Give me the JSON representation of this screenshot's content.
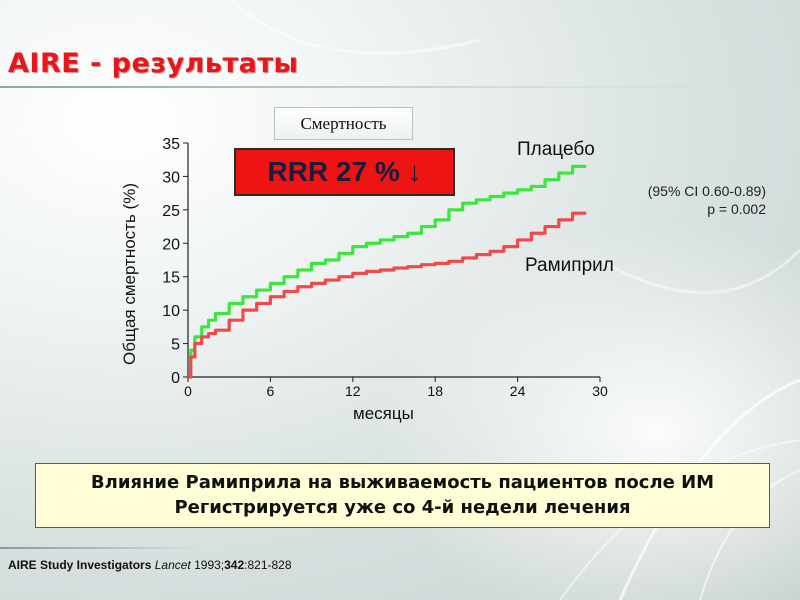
{
  "title": "AIRE - результаты",
  "box_label": "Смертность",
  "rrr_text": "RRR 27 % ↓",
  "ci_line1": "(95% CI 0.60-0.89)",
  "p_line": "p = 0.002",
  "note_line1": "Влияние Рамиприла на выживаемость пациентов после ИМ",
  "note_line2": "Регистрируется уже со 4-й недели лечения",
  "citation": {
    "authors": "AIRE Study Investigators",
    "journal": "Lancet",
    "year": "1993;",
    "volume": "342",
    "pages": ":821-828"
  },
  "colors": {
    "title": "#e8161b",
    "placebo": "#3ce63c",
    "ramipril": "#f04a4a",
    "rrr_box": "#ee1414",
    "note_bg": "#fefdd5"
  },
  "chart_data": {
    "type": "line",
    "title": "",
    "xlabel": "месяцы",
    "ylabel": "Общая смертность (%)",
    "xlim": [
      0,
      30
    ],
    "ylim": [
      0,
      35
    ],
    "xticks": [
      0,
      6,
      12,
      18,
      24,
      30
    ],
    "yticks": [
      0,
      5,
      10,
      15,
      20,
      25,
      30,
      35
    ],
    "grid": false,
    "series": [
      {
        "name": "Плацебо",
        "x": [
          0,
          0.2,
          0.5,
          1,
          1.5,
          2,
          3,
          4,
          5,
          6,
          7,
          8,
          9,
          10,
          11,
          12,
          13,
          14,
          15,
          16,
          17,
          18,
          19,
          20,
          21,
          22,
          23,
          24,
          25,
          26,
          27,
          28,
          29
        ],
        "y": [
          0,
          4,
          6,
          7.5,
          8.5,
          9.5,
          11,
          12,
          13,
          14,
          15,
          16,
          17,
          17.5,
          18.5,
          19.5,
          20,
          20.5,
          21,
          21.5,
          22.5,
          23.5,
          25,
          26,
          26.5,
          27,
          27.5,
          28,
          28.5,
          29.5,
          30.5,
          31.5,
          31.5
        ]
      },
      {
        "name": "Рамиприл",
        "x": [
          0,
          0.2,
          0.5,
          1,
          1.5,
          2,
          3,
          4,
          5,
          6,
          7,
          8,
          9,
          10,
          11,
          12,
          13,
          14,
          15,
          16,
          17,
          18,
          19,
          20,
          21,
          22,
          23,
          24,
          25,
          26,
          27,
          28,
          29
        ],
        "y": [
          0,
          3,
          5,
          6,
          6.5,
          7,
          8.5,
          10,
          11,
          12,
          12.8,
          13.5,
          14,
          14.5,
          15,
          15.5,
          15.8,
          16,
          16.3,
          16.5,
          16.8,
          17,
          17.3,
          17.8,
          18.3,
          18.8,
          19.5,
          20.5,
          21.5,
          22.5,
          23.5,
          24.5,
          24.5
        ]
      }
    ]
  }
}
